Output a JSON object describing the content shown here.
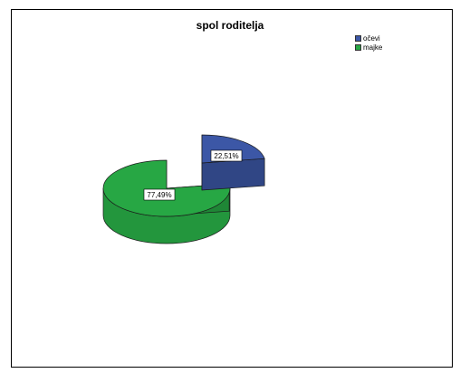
{
  "chart_data": {
    "type": "pie",
    "style": "3d-exploded",
    "title": "spol roditelja",
    "legend_position": "top-right",
    "slices": [
      {
        "label": "očevi",
        "value": 22.51,
        "value_label": "22,51%",
        "color": "#3c57a6"
      },
      {
        "label": "majke",
        "value": 77.49,
        "value_label": "77,49%",
        "color": "#27a744"
      }
    ]
  }
}
